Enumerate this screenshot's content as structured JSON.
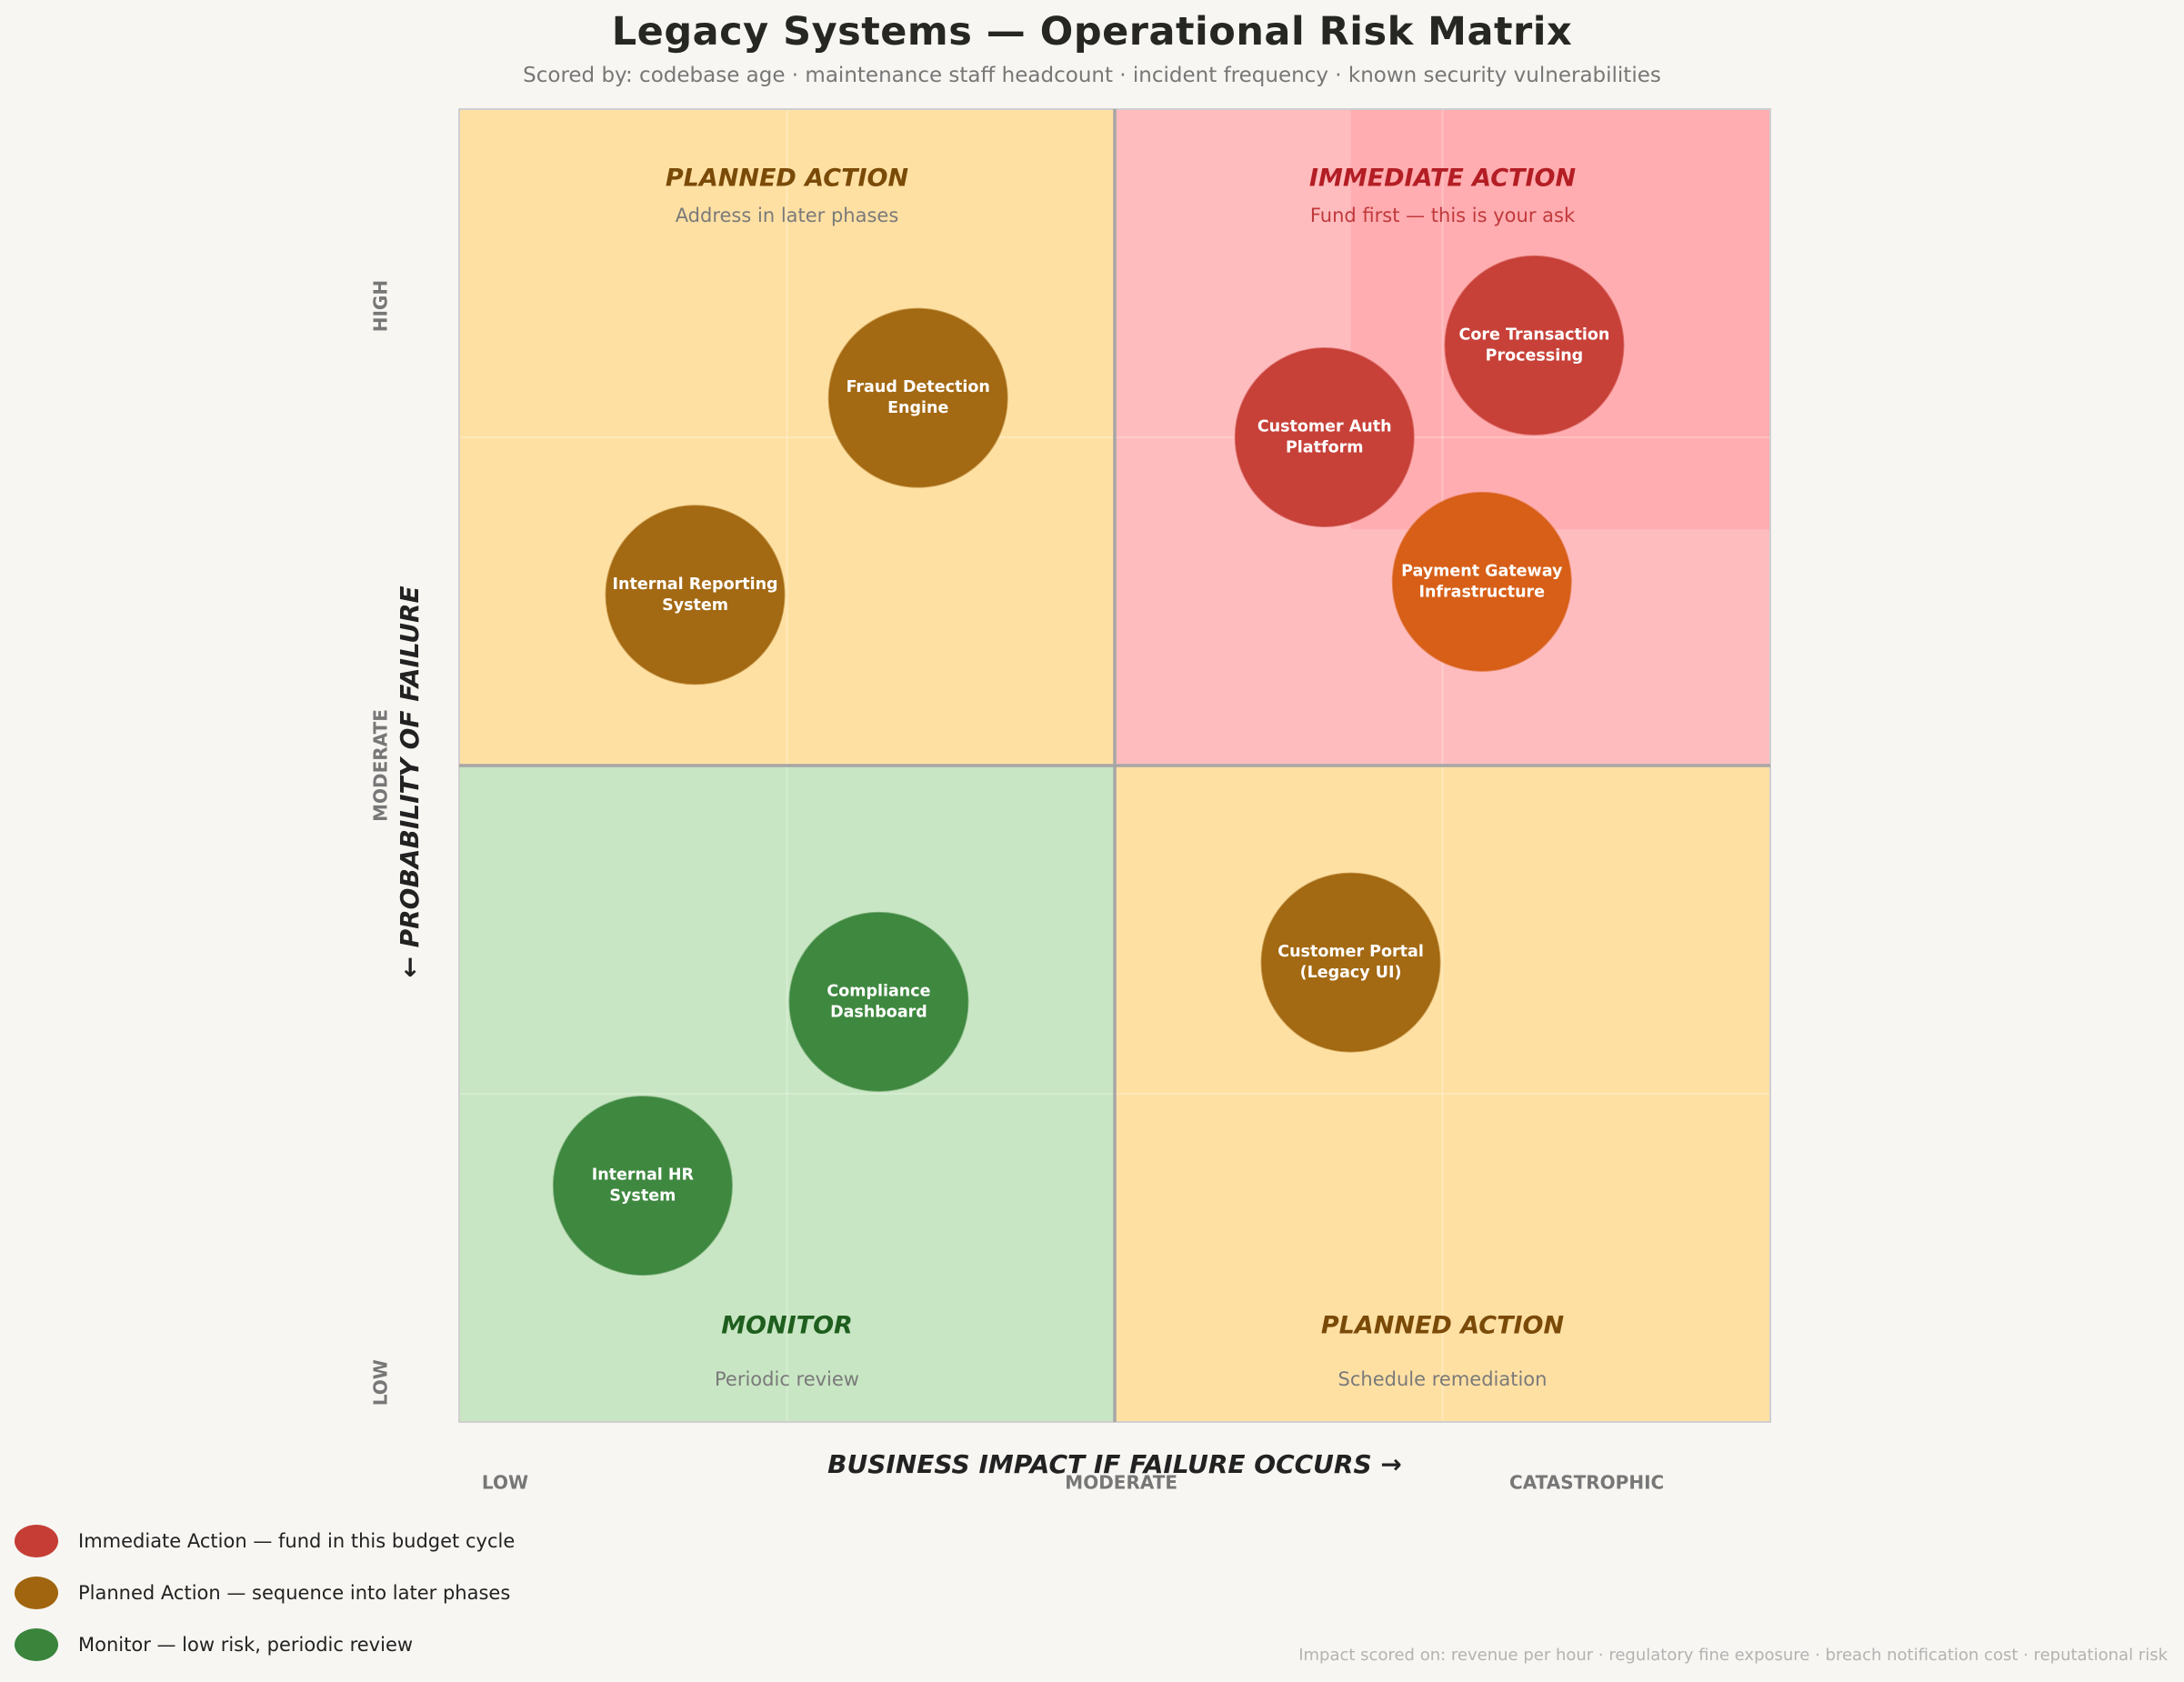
{
  "header": {
    "title": "Legacy Systems — Operational Risk Matrix",
    "subtitle": "Scored by: codebase age  ·  maintenance staff headcount  ·  incident frequency  ·  known security vulnerabilities"
  },
  "chart_data": {
    "type": "scatter",
    "title": "Legacy Systems — Operational Risk Matrix",
    "xlabel": "BUSINESS IMPACT IF FAILURE OCCURS  →",
    "ylabel": "←  PROBABILITY OF FAILURE",
    "xlim": [
      0,
      10
    ],
    "ylim": [
      0,
      10
    ],
    "x_tick_labels": [
      {
        "label": "LOW",
        "x": 0.35
      },
      {
        "label": "MODERATE",
        "x": 5.05
      },
      {
        "label": "CATASTROPHIC",
        "x": 8.6
      }
    ],
    "y_tick_labels": [
      {
        "label": "HIGH",
        "y": 8.5
      },
      {
        "label": "MODERATE",
        "y": 5.0
      },
      {
        "label": "LOW",
        "y": 0.3
      }
    ],
    "quadrants": [
      {
        "id": "top-left",
        "title": "PLANNED ACTION",
        "subtitle": "Address in later phases",
        "fill": "#ffe0a3",
        "title_color": "#7a4a08",
        "subtitle_color": "#7a7a7a"
      },
      {
        "id": "top-right",
        "title": "IMMEDIATE ACTION",
        "subtitle": "Fund first — this is your ask",
        "fill": "#ffbcbe",
        "title_color": "#b31d24",
        "subtitle_color": "#c0393c"
      },
      {
        "id": "bottom-left",
        "title": "MONITOR",
        "subtitle": "Periodic review",
        "fill": "#c8e6c3",
        "title_color": "#1e5e1e",
        "subtitle_color": "#7a7a7a"
      },
      {
        "id": "bottom-right",
        "title": "PLANNED ACTION",
        "subtitle": "Schedule remediation",
        "fill": "#ffe0a3",
        "title_color": "#7a4a08",
        "subtitle_color": "#7a7a7a"
      }
    ],
    "points": [
      {
        "label": [
          "Core Transaction",
          "Processing"
        ],
        "x": 8.2,
        "y": 8.2,
        "color": "#c53d35"
      },
      {
        "label": [
          "Customer Auth",
          "Platform"
        ],
        "x": 6.6,
        "y": 7.5,
        "color": "#c53d35"
      },
      {
        "label": [
          "Payment Gateway",
          "Infrastructure"
        ],
        "x": 7.8,
        "y": 6.4,
        "color": "#d65c12"
      },
      {
        "label": [
          "Fraud Detection",
          "Engine"
        ],
        "x": 3.5,
        "y": 7.8,
        "color": "#a0650e"
      },
      {
        "label": [
          "Internal Reporting",
          "System"
        ],
        "x": 1.8,
        "y": 6.3,
        "color": "#a0650e"
      },
      {
        "label": [
          "Customer Portal",
          "(Legacy UI)"
        ],
        "x": 6.8,
        "y": 3.5,
        "color": "#a0650e"
      },
      {
        "label": [
          "Compliance",
          "Dashboard"
        ],
        "x": 3.2,
        "y": 3.2,
        "color": "#3a843c"
      },
      {
        "label": [
          "Internal HR",
          "System"
        ],
        "x": 1.4,
        "y": 1.8,
        "color": "#3a843c"
      }
    ]
  },
  "legend": {
    "items": [
      {
        "label": "Immediate Action — fund in this budget cycle",
        "color": "#c53d35"
      },
      {
        "label": "Planned Action — sequence into later phases",
        "color": "#a0650e"
      },
      {
        "label": "Monitor — low risk, periodic review",
        "color": "#3a843c"
      }
    ]
  },
  "footnote": "Impact scored on: revenue per hour · regulatory fine exposure · breach notification cost · reputational risk"
}
